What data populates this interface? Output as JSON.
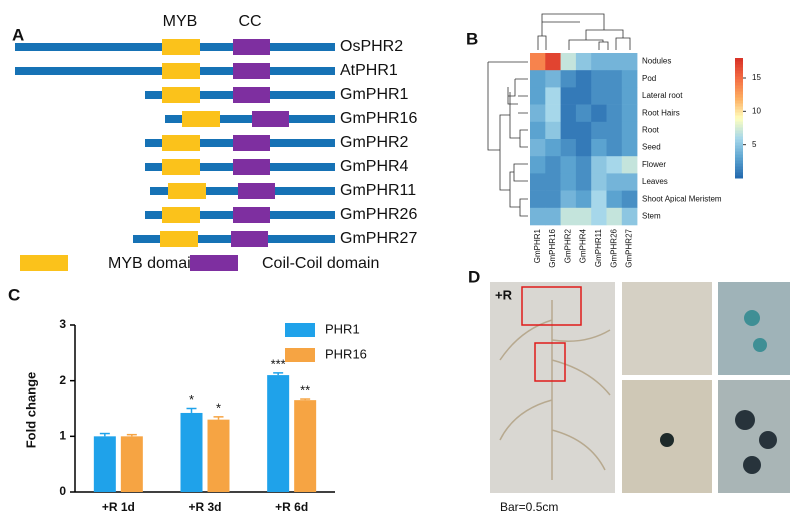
{
  "panel_a": {
    "letter": "A",
    "header_labels": [
      "MYB",
      "CC"
    ],
    "proteins": [
      "OsPHR2",
      "AtPHR1",
      "GmPHR1",
      "GmPHR16",
      "GmPHR2",
      "GmPHR4",
      "GmPHR11",
      "GmPHR26",
      "GmPHR27"
    ],
    "legend": [
      {
        "name": "MYB domain",
        "color": "#fbc21b"
      },
      {
        "name": "Coil-Coil domain",
        "color": "#7e2fa0"
      }
    ],
    "backbone_color": "#1672b5"
  },
  "chart_data": [
    {
      "type": "heatmap",
      "panel": "B",
      "rows": [
        "Nodules",
        "Pod",
        "Lateral root",
        "Root Hairs",
        "Root",
        "Seed",
        "Flower",
        "Leaves",
        "Shoot Apical Meristem",
        "Stem"
      ],
      "columns": [
        "GmPHR1",
        "GmPHR16",
        "GmPHR2",
        "GmPHR4",
        "GmPHR11",
        "GmPHR26",
        "GmPHR27"
      ],
      "values": [
        [
          14,
          17,
          7,
          5,
          4,
          4,
          4
        ],
        [
          3,
          4,
          2,
          1,
          2,
          2,
          3
        ],
        [
          3,
          6,
          1,
          1,
          2,
          2,
          3
        ],
        [
          4,
          6,
          1,
          2,
          1,
          2,
          3
        ],
        [
          3,
          5,
          1,
          1,
          2,
          2,
          3
        ],
        [
          4,
          3,
          2,
          1,
          3,
          2,
          3
        ],
        [
          3,
          2,
          3,
          2,
          5,
          6,
          7
        ],
        [
          2,
          2,
          3,
          2,
          5,
          4,
          4
        ],
        [
          2,
          2,
          4,
          3,
          6,
          3,
          2
        ],
        [
          4,
          4,
          7,
          7,
          6,
          7,
          5
        ]
      ],
      "zlim": [
        0,
        18
      ],
      "zticks": [
        5,
        10,
        15
      ],
      "colormap": [
        "#2166ac",
        "#5ba3d0",
        "#a6d7ea",
        "#ffffbf",
        "#fdae61",
        "#f46d43",
        "#d73027"
      ]
    },
    {
      "type": "bar",
      "panel": "C",
      "ylabel": "Fold change",
      "categories": [
        "+R 1d",
        "+R 3d",
        "+R 6d"
      ],
      "series": [
        {
          "name": "PHR1",
          "color": "#1fa2ea",
          "values": [
            1.0,
            1.42,
            2.1
          ],
          "errors": [
            0.05,
            0.08,
            0.04
          ],
          "significance": [
            null,
            "*",
            "***"
          ]
        },
        {
          "name": "PHR16",
          "color": "#f6a443",
          "values": [
            1.0,
            1.3,
            1.65
          ],
          "errors": [
            0.03,
            0.05,
            0.02
          ],
          "significance": [
            null,
            "*",
            "**"
          ]
        }
      ],
      "ylim": [
        0,
        3
      ],
      "yticks": [
        0,
        1,
        2,
        3
      ],
      "legend": "upper right"
    }
  ],
  "panel_d": {
    "letter": "D",
    "photo_label": "+R",
    "scale_note": "Bar=0.5cm"
  }
}
